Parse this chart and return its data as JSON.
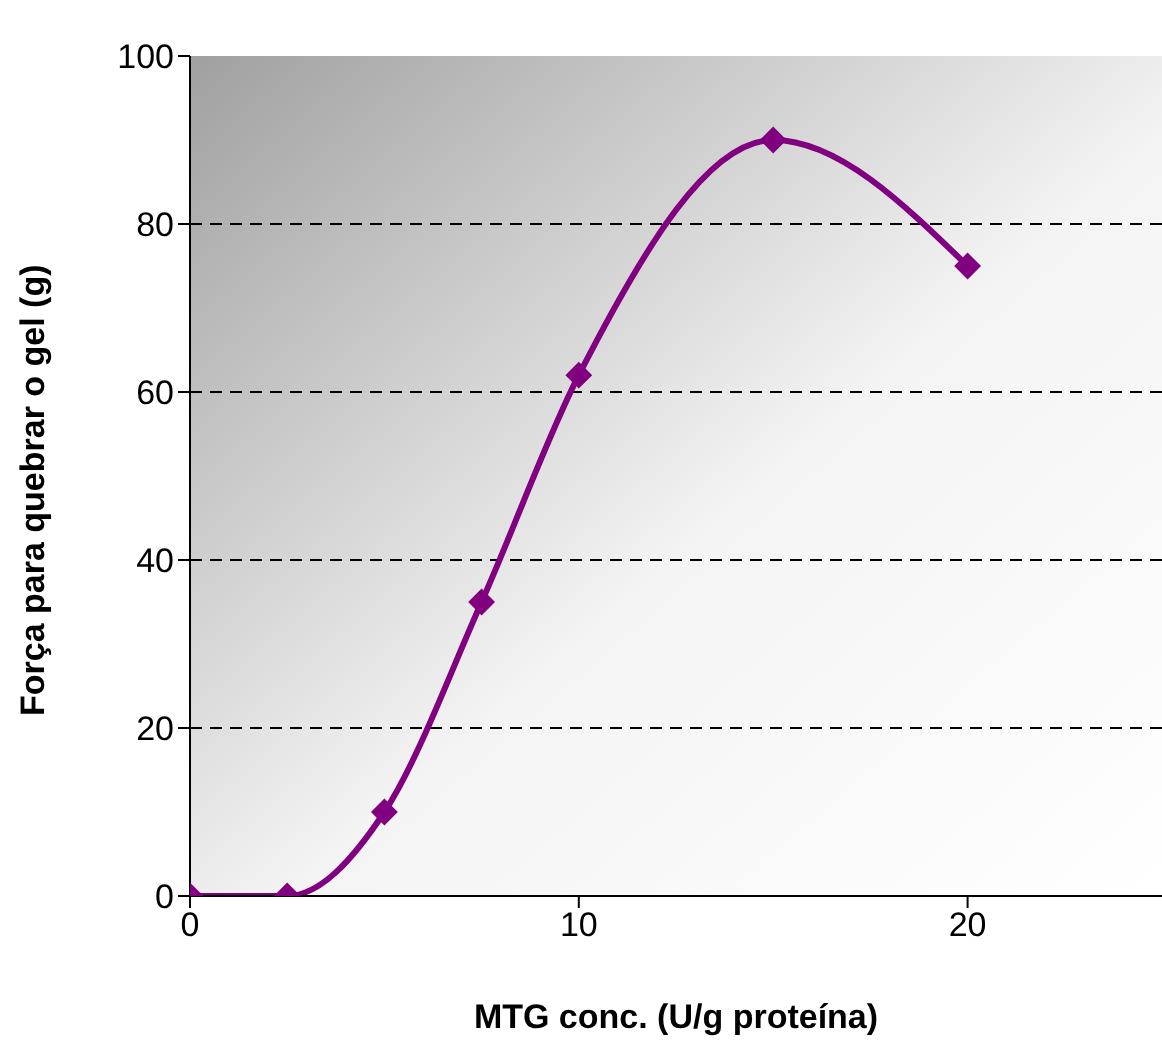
{
  "chart_data": {
    "type": "line",
    "xlabel": "MTG conc. (U/g proteína)",
    "ylabel": "Força para quebrar o gel (g)",
    "x": [
      0,
      2.5,
      5,
      7.5,
      10,
      15,
      20
    ],
    "series": [
      {
        "color": "#800080",
        "values": [
          0,
          0,
          10,
          35,
          62,
          90,
          75
        ]
      }
    ],
    "xlim": [
      0,
      25
    ],
    "xticks": [
      0,
      10,
      20
    ],
    "ylim": [
      0,
      100
    ],
    "yticks": [
      0,
      20,
      40,
      60,
      80,
      100
    ],
    "grid": "y",
    "marker": "diamond",
    "line_style": "solid"
  }
}
